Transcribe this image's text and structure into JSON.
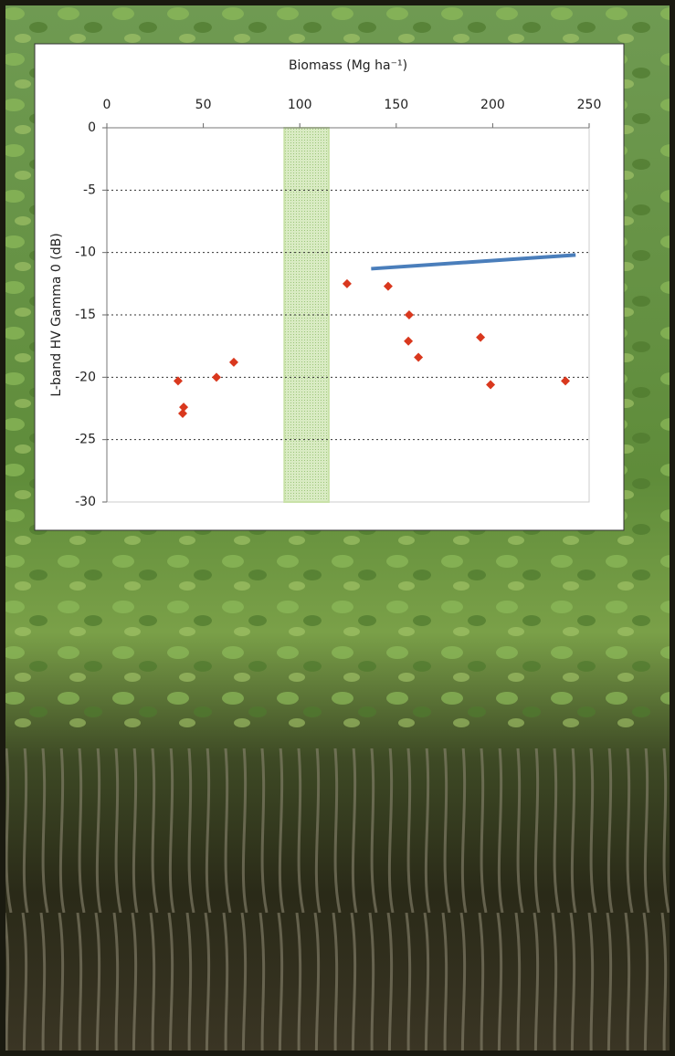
{
  "chart_data": {
    "type": "scatter",
    "title": "Biomass (Mg ha⁻¹)",
    "y_label": "L-band HV Gamma 0 (dB)",
    "x": [
      36.9,
      39.8,
      39.3,
      56.8,
      65.8,
      124.5,
      145.8,
      156.7,
      156.3,
      161.5,
      193.7,
      198.9,
      237.7
    ],
    "values": [
      -20.3,
      -22.4,
      -22.9,
      -20.0,
      -18.8,
      -12.5,
      -12.7,
      -15.0,
      -17.1,
      -18.4,
      -16.8,
      -20.6,
      -20.3
    ],
    "color": "#d9381e",
    "line": {
      "x": [
        137,
        243
      ],
      "values": [
        -11.3,
        -10.2
      ],
      "color": "#4a7ebb"
    },
    "band": {
      "x": [
        92,
        115
      ],
      "color": "#c9e2a8"
    },
    "xlim": [
      0,
      250
    ],
    "xticks": [
      0,
      50,
      100,
      150,
      200,
      250
    ],
    "ylim": [
      -30,
      0
    ],
    "yticks": [
      0,
      -5,
      -10,
      -15,
      -20,
      -25,
      -30
    ],
    "grid": true
  }
}
